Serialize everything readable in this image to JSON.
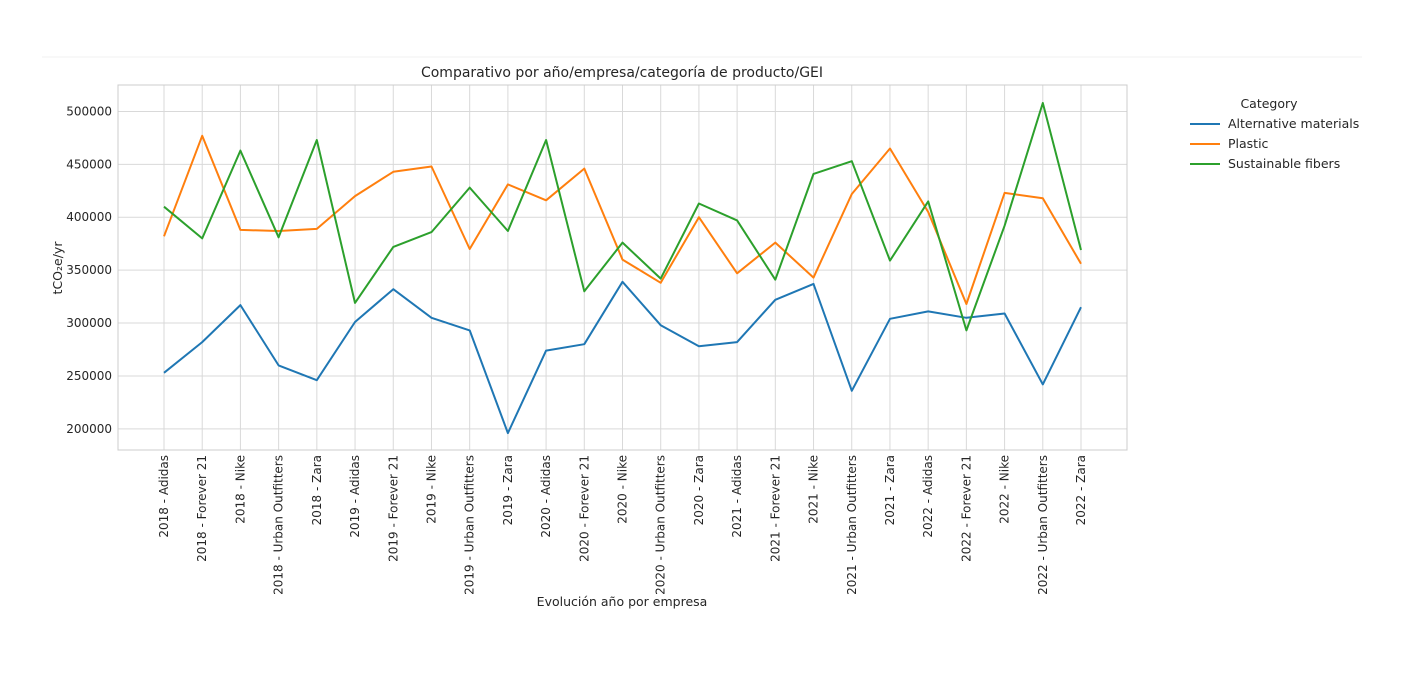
{
  "chart_data": {
    "type": "line",
    "title": "Comparativo por año/empresa/categoría de producto/GEI",
    "xlabel": "Evolución año por empresa",
    "ylabel": "tCO₂e/yr",
    "ylim": [
      180000,
      525000
    ],
    "yticks": [
      200000,
      250000,
      300000,
      350000,
      400000,
      450000,
      500000
    ],
    "grid": true,
    "legend": {
      "title": "Category",
      "placement": "outside-top-right"
    },
    "categories": [
      "2018 - Adidas",
      "2018 - Forever 21",
      "2018 - Nike",
      "2018 - Urban Outfitters",
      "2018 - Zara",
      "2019 - Adidas",
      "2019 - Forever 21",
      "2019 - Nike",
      "2019 - Urban Outfitters",
      "2019 - Zara",
      "2020 - Adidas",
      "2020 - Forever 21",
      "2020 - Nike",
      "2020 - Urban Outfitters",
      "2020 - Zara",
      "2021 - Adidas",
      "2021 - Forever 21",
      "2021 - Nike",
      "2021 - Urban Outfitters",
      "2021 - Zara",
      "2022 - Adidas",
      "2022 - Forever 21",
      "2022 - Nike",
      "2022 - Urban Outfitters",
      "2022 - Zara"
    ],
    "series": [
      {
        "name": "Alternative materials",
        "color": "#1f77b4",
        "values": [
          253000,
          282000,
          317000,
          260000,
          246000,
          301000,
          332000,
          305000,
          293000,
          196000,
          274000,
          280000,
          339000,
          298000,
          278000,
          282000,
          322000,
          337000,
          236000,
          304000,
          311000,
          305000,
          309000,
          242000,
          315000
        ]
      },
      {
        "name": "Plastic",
        "color": "#ff7f0e",
        "values": [
          382000,
          477000,
          388000,
          387000,
          389000,
          420000,
          443000,
          448000,
          370000,
          431000,
          416000,
          446000,
          360000,
          338000,
          400000,
          347000,
          376000,
          343000,
          422000,
          465000,
          405000,
          318000,
          423000,
          418000,
          356000
        ]
      },
      {
        "name": "Sustainable fibers",
        "color": "#2ca02c",
        "values": [
          410000,
          380000,
          463000,
          381000,
          473000,
          319000,
          372000,
          386000,
          428000,
          387000,
          473000,
          330000,
          376000,
          342000,
          413000,
          397000,
          341000,
          441000,
          453000,
          359000,
          415000,
          293000,
          392000,
          508000,
          369000
        ]
      }
    ]
  }
}
